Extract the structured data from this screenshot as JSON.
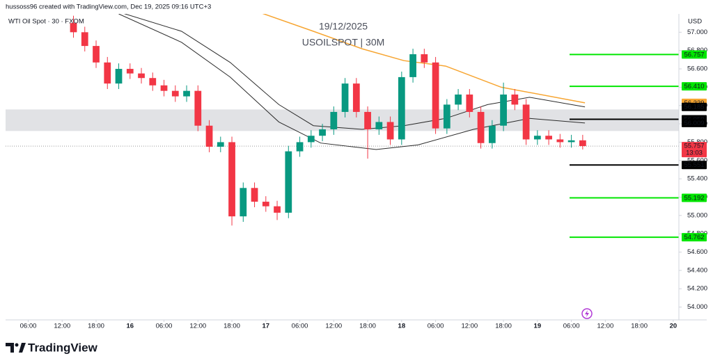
{
  "header": {
    "text": "hussoss96 created with TradingView.com, Dec 19, 2025 09:16 UTC+3"
  },
  "chart_data": {
    "type": "candlestick",
    "symbol": "WTI Oil Spot · 30 · FXOM",
    "title": "19/12/2025",
    "subtitle": "USOILSPOT | 30M",
    "currency": "USD",
    "up_color": "#089981",
    "down_color": "#f23645",
    "x": [
      14,
      16,
      18,
      20,
      22,
      24,
      26,
      28,
      30,
      32,
      34,
      36,
      38,
      40,
      42,
      44,
      46,
      48,
      50,
      52,
      54,
      56,
      58,
      60,
      62,
      64,
      66,
      68,
      70,
      72,
      74,
      76,
      78,
      80,
      82,
      84,
      86,
      88,
      90,
      92,
      94,
      96,
      98,
      100,
      102,
      104
    ],
    "open": [
      57.1,
      57.0,
      56.85,
      56.67,
      56.44,
      56.6,
      56.55,
      56.5,
      56.42,
      56.36,
      56.3,
      56.36,
      55.98,
      55.75,
      55.8,
      54.99,
      55.3,
      55.15,
      55.1,
      55.03,
      55.7,
      55.8,
      55.87,
      55.94,
      56.13,
      56.44,
      56.13,
      55.94,
      56.02,
      55.83,
      56.51,
      56.76,
      56.67,
      55.95,
      56.21,
      56.32,
      56.13,
      55.79,
      55.98,
      56.32,
      56.21,
      55.83,
      55.87,
      55.83,
      55.8,
      55.82
    ],
    "high": [
      57.18,
      57.06,
      56.91,
      56.73,
      56.66,
      56.66,
      56.61,
      56.56,
      56.48,
      56.42,
      56.42,
      56.42,
      56.04,
      55.86,
      55.86,
      55.36,
      55.36,
      55.21,
      55.16,
      55.76,
      55.86,
      55.93,
      56.0,
      56.19,
      56.5,
      56.5,
      56.19,
      56.08,
      56.08,
      56.57,
      56.82,
      56.82,
      56.73,
      56.27,
      56.38,
      56.38,
      56.19,
      56.04,
      56.45,
      56.38,
      56.27,
      55.93,
      55.93,
      55.89,
      55.88,
      55.88
    ],
    "low": [
      56.94,
      56.79,
      56.61,
      56.38,
      56.38,
      56.49,
      56.44,
      56.36,
      56.3,
      56.24,
      56.24,
      55.92,
      55.69,
      55.69,
      54.89,
      54.93,
      55.09,
      55.04,
      54.95,
      54.97,
      55.64,
      55.74,
      55.81,
      55.88,
      56.07,
      56.07,
      55.62,
      55.88,
      55.77,
      55.77,
      56.45,
      56.61,
      55.89,
      55.89,
      56.15,
      56.07,
      55.73,
      55.73,
      55.92,
      56.15,
      55.77,
      55.77,
      55.77,
      55.74,
      55.74,
      55.72
    ],
    "close": [
      57.0,
      56.85,
      56.67,
      56.44,
      56.6,
      56.55,
      56.5,
      56.42,
      56.36,
      56.3,
      56.36,
      55.98,
      55.75,
      55.8,
      54.99,
      55.3,
      55.15,
      55.1,
      55.03,
      55.7,
      55.8,
      55.87,
      55.94,
      56.13,
      56.44,
      56.13,
      55.94,
      56.02,
      55.83,
      56.51,
      56.76,
      56.67,
      55.95,
      56.21,
      56.32,
      56.13,
      55.79,
      55.98,
      56.32,
      56.21,
      55.83,
      55.87,
      55.83,
      55.8,
      55.82,
      55.757
    ],
    "lines": [
      {
        "color": "#f7a531",
        "x": [
          47.2,
          56.4,
          65.0,
          72.4,
          79.8,
          89.6,
          104.4
        ],
        "values": [
          57.21,
          57.01,
          56.82,
          56.69,
          56.63,
          56.4,
          56.229
        ],
        "last_label": "56.229",
        "label_color": "#f7a531"
      },
      {
        "color": "#2a2a2a",
        "x": [
          22.6,
          33.1,
          41.7,
          50.3,
          56.4,
          65.0,
          72.4,
          79.8,
          87.2,
          94.6,
          104.4
        ],
        "values": [
          57.21,
          57.01,
          56.67,
          56.21,
          55.98,
          55.94,
          55.98,
          56.06,
          56.21,
          56.29,
          56.185
        ],
        "last_label": "56.185",
        "label_color": "#000000"
      },
      {
        "color": "#2a2a2a",
        "x": [
          22.0,
          33.1,
          41.7,
          50.3,
          57.7,
          67.5,
          74.9,
          84.7,
          94.6,
          104.4
        ],
        "values": [
          57.2,
          56.89,
          56.51,
          56.02,
          55.79,
          55.72,
          55.77,
          55.94,
          56.06,
          56.009
        ],
        "last_label": "56.009",
        "label_color": "#000000"
      }
    ],
    "levels": [
      {
        "value": 56.757,
        "label": "56.757",
        "color": "#00e600"
      },
      {
        "value": 56.41,
        "label": "56.410",
        "color": "#00e600"
      },
      {
        "value": 56.05,
        "label": "56.050",
        "color": "#000000"
      },
      {
        "value": 55.551,
        "label": "55.551",
        "color": "#000000"
      },
      {
        "value": 55.192,
        "label": "55.192",
        "color": "#00e600"
      },
      {
        "value": 54.762,
        "label": "54.762",
        "color": "#00e600"
      }
    ],
    "zone": [
      55.922,
      56.157
    ],
    "last_price": {
      "value": 55.757,
      "label": "55.757",
      "countdown": "13:03"
    },
    "xlim": [
      2,
      121
    ],
    "ylim": [
      53.86,
      57.2
    ],
    "xticks": [
      {
        "value": 6,
        "label": "06:00"
      },
      {
        "value": 12,
        "label": "12:00"
      },
      {
        "value": 18,
        "label": "18:00"
      },
      {
        "value": 24,
        "label": "16"
      },
      {
        "value": 30,
        "label": "06:00"
      },
      {
        "value": 36,
        "label": "12:00"
      },
      {
        "value": 42,
        "label": "18:00"
      },
      {
        "value": 48,
        "label": "17"
      },
      {
        "value": 54,
        "label": "06:00"
      },
      {
        "value": 60,
        "label": "12:00"
      },
      {
        "value": 66,
        "label": "18:00"
      },
      {
        "value": 72,
        "label": "18"
      },
      {
        "value": 78,
        "label": "06:00"
      },
      {
        "value": 84,
        "label": "12:00"
      },
      {
        "value": 90,
        "label": "18:00"
      },
      {
        "value": 96,
        "label": "19"
      },
      {
        "value": 102,
        "label": "06:00"
      },
      {
        "value": 108,
        "label": "12:00"
      },
      {
        "value": 114,
        "label": "18:00"
      },
      {
        "value": 120,
        "label": "20"
      }
    ],
    "yticks": [
      {
        "value": 54,
        "label": "54.000"
      },
      {
        "value": 54.2,
        "label": "54.200"
      },
      {
        "value": 54.4,
        "label": "54.400"
      },
      {
        "value": 54.6,
        "label": "54.600"
      },
      {
        "value": 54.8,
        "label": "54.800"
      },
      {
        "value": 55,
        "label": "55.000"
      },
      {
        "value": 55.2,
        "label": "55.200"
      },
      {
        "value": 55.4,
        "label": "55.400"
      },
      {
        "value": 55.6,
        "label": "55.600"
      },
      {
        "value": 55.8,
        "label": "55.800"
      },
      {
        "value": 56,
        "label": "56.000"
      },
      {
        "value": 56.2,
        "label": "56.200"
      },
      {
        "value": 56.4,
        "label": "56.400"
      },
      {
        "value": 56.6,
        "label": "56.600"
      },
      {
        "value": 56.8,
        "label": "56.800"
      },
      {
        "value": 57,
        "label": "57.000"
      }
    ]
  },
  "footer": {
    "brand": "TradingView"
  }
}
